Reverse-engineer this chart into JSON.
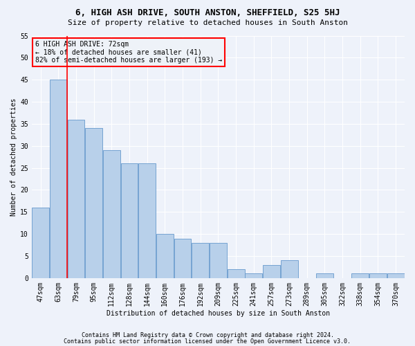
{
  "title": "6, HIGH ASH DRIVE, SOUTH ANSTON, SHEFFIELD, S25 5HJ",
  "subtitle": "Size of property relative to detached houses in South Anston",
  "xlabel": "Distribution of detached houses by size in South Anston",
  "ylabel": "Number of detached properties",
  "footnote1": "Contains HM Land Registry data © Crown copyright and database right 2024.",
  "footnote2": "Contains public sector information licensed under the Open Government Licence v3.0.",
  "annotation_line1": "6 HIGH ASH DRIVE: 72sqm",
  "annotation_line2": "← 18% of detached houses are smaller (41)",
  "annotation_line3": "82% of semi-detached houses are larger (193) →",
  "bin_labels": [
    "47sqm",
    "63sqm",
    "79sqm",
    "95sqm",
    "112sqm",
    "128sqm",
    "144sqm",
    "160sqm",
    "176sqm",
    "192sqm",
    "209sqm",
    "225sqm",
    "241sqm",
    "257sqm",
    "273sqm",
    "289sqm",
    "305sqm",
    "322sqm",
    "338sqm",
    "354sqm",
    "370sqm"
  ],
  "bar_values": [
    16,
    45,
    36,
    34,
    29,
    26,
    26,
    10,
    9,
    8,
    8,
    2,
    1,
    3,
    4,
    0,
    1,
    0,
    1,
    1,
    1
  ],
  "bar_color": "#b8d0ea",
  "bar_edge_color": "#6699cc",
  "vline_color": "red",
  "annotation_box_facecolor": "#eef2f8",
  "annotation_box_edgecolor": "red",
  "background_color": "#eef2fa",
  "grid_color": "white",
  "ylim": [
    0,
    55
  ],
  "yticks": [
    0,
    5,
    10,
    15,
    20,
    25,
    30,
    35,
    40,
    45,
    50,
    55
  ],
  "vline_pos": 1.5,
  "title_fontsize": 9,
  "subtitle_fontsize": 8,
  "tick_fontsize": 7,
  "ylabel_fontsize": 7,
  "xlabel_fontsize": 7,
  "footnote_fontsize": 6
}
